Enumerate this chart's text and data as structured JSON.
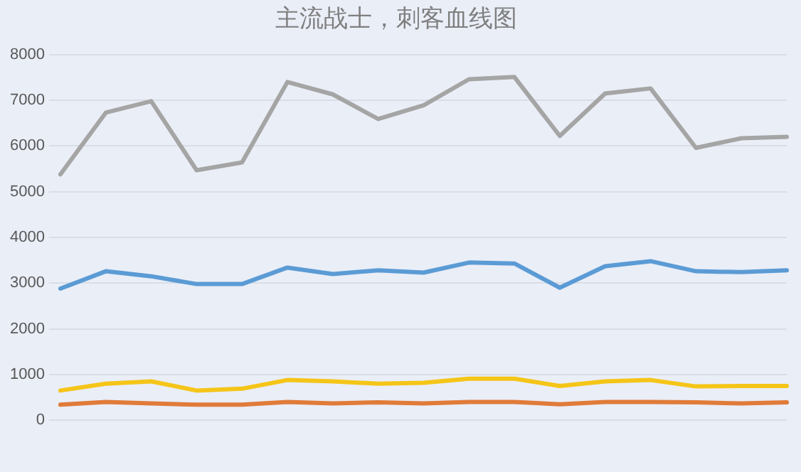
{
  "chart_data": {
    "type": "line",
    "title": "主流战士，刺客血线图",
    "categories": [
      null,
      null,
      null,
      null,
      null,
      null,
      null,
      null,
      null,
      null,
      null,
      null,
      null,
      null,
      null,
      null,
      null
    ],
    "series": [
      {
        "color": "#5b9bd5",
        "values": [
          2880,
          3260,
          3150,
          2980,
          2980,
          3340,
          3200,
          3280,
          3230,
          3450,
          3430,
          2900,
          3370,
          3480,
          3260,
          3240,
          3280
        ]
      },
      {
        "color": "#e07b39",
        "values": [
          340,
          400,
          370,
          340,
          340,
          400,
          370,
          390,
          370,
          400,
          400,
          350,
          400,
          400,
          390,
          370,
          390
        ]
      },
      {
        "color": "#a5a5a5",
        "values": [
          5380,
          6730,
          6980,
          5470,
          5640,
          7400,
          7130,
          6590,
          6890,
          7460,
          7510,
          6220,
          7150,
          7260,
          5960,
          6170,
          6200
        ]
      },
      {
        "color": "#f5c518",
        "values": [
          650,
          800,
          850,
          650,
          690,
          880,
          850,
          800,
          820,
          910,
          910,
          750,
          850,
          880,
          740,
          750,
          750
        ]
      }
    ],
    "ylim": [
      0,
      8000
    ],
    "yticks": [
      0,
      1000,
      2000,
      3000,
      4000,
      5000,
      6000,
      7000,
      8000
    ],
    "grid": "y",
    "legend": false,
    "marker": "none",
    "line_style": "solid"
  }
}
